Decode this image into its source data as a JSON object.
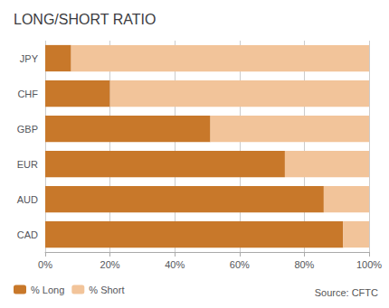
{
  "chart_data": {
    "type": "bar",
    "orientation": "horizontal",
    "stacked": true,
    "title": "LONG/SHORT RATIO",
    "categories": [
      "JPY",
      "CHF",
      "GBP",
      "EUR",
      "AUD",
      "CAD"
    ],
    "series": [
      {
        "name": "% Long",
        "color": "#C8782A",
        "values": [
          8,
          20,
          51,
          74,
          86,
          92
        ]
      },
      {
        "name": "% Short",
        "color": "#F2C49A",
        "values": [
          92,
          80,
          49,
          26,
          14,
          8
        ]
      }
    ],
    "xlim": [
      0,
      100
    ],
    "xticks": [
      {
        "value": 0,
        "label": "0%"
      },
      {
        "value": 20,
        "label": "20%"
      },
      {
        "value": 40,
        "label": "40%"
      },
      {
        "value": 60,
        "label": "60%"
      },
      {
        "value": 80,
        "label": "80%"
      },
      {
        "value": 100,
        "label": "100%"
      }
    ],
    "grid": true,
    "legend": "lower left",
    "annotations": [
      "Source: CFTC"
    ]
  }
}
